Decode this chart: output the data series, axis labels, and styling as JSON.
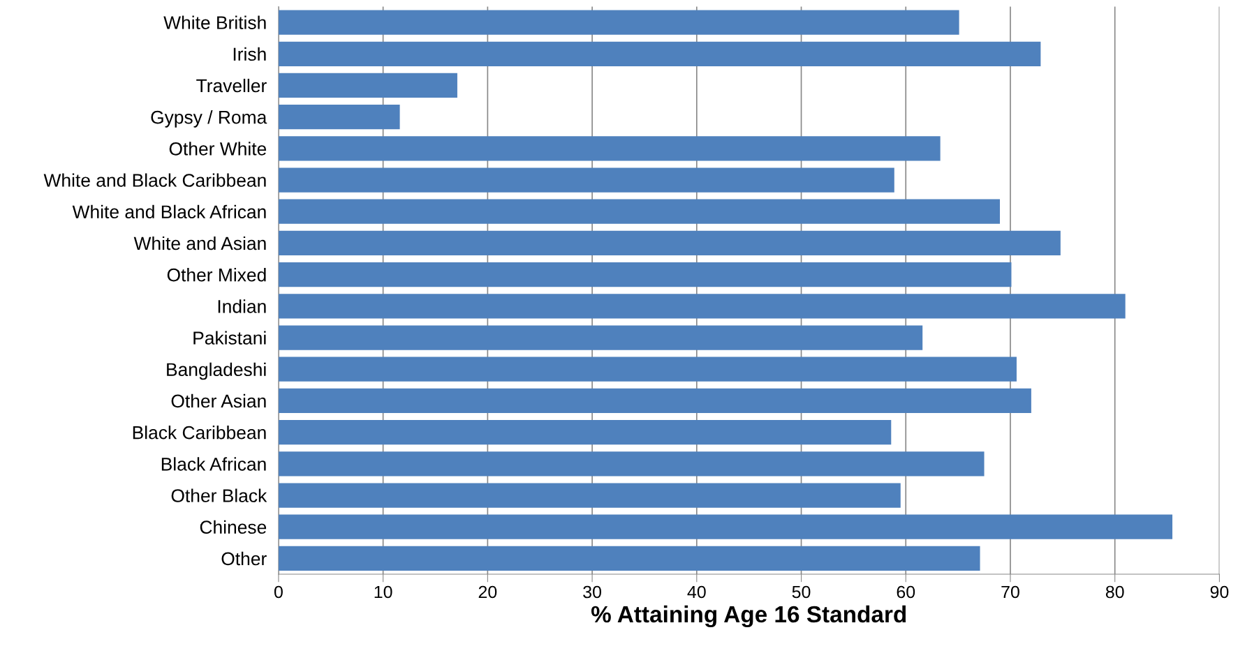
{
  "chart_data": {
    "type": "bar",
    "orientation": "horizontal",
    "xlabel": "% Attaining Age 16 Standard",
    "categories": [
      "White British",
      "Irish",
      "Traveller",
      "Gypsy / Roma",
      "Other White",
      "White and Black Caribbean",
      "White and Black African",
      "White and Asian",
      "Other Mixed",
      "Indian",
      "Pakistani",
      "Bangladeshi",
      "Other Asian",
      "Black Caribbean",
      "Black African",
      "Other Black",
      "Chinese",
      "Other"
    ],
    "values": [
      65.1,
      72.9,
      17.1,
      11.6,
      63.3,
      58.9,
      69.0,
      74.8,
      70.1,
      81.0,
      61.6,
      70.6,
      72.0,
      58.6,
      67.5,
      59.5,
      85.5,
      67.1
    ],
    "color": "#4f81bd",
    "xlim": [
      0,
      90
    ],
    "xticks": [
      0,
      10,
      20,
      30,
      40,
      50,
      60,
      70,
      80,
      90
    ],
    "grid": "x",
    "legend": false
  }
}
